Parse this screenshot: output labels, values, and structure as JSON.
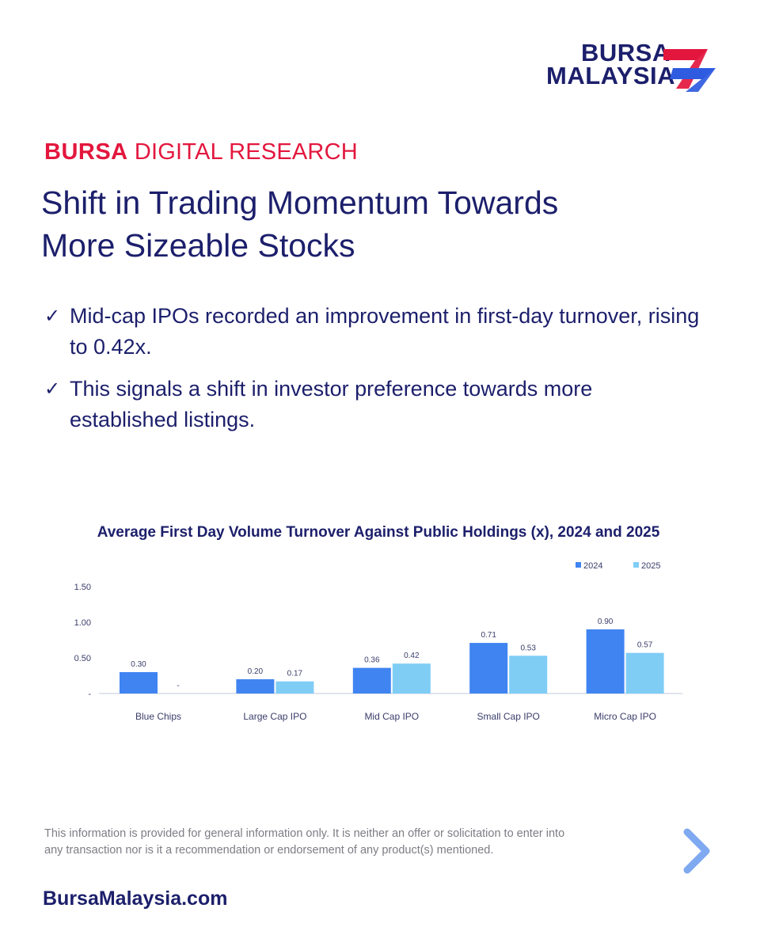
{
  "brand": {
    "logo_line1": "BURSA",
    "logo_line2": "MALAYSIA",
    "colors": {
      "navy": "#1c1f6b",
      "red": "#e3173e",
      "blue": "#2f5be0",
      "bar2024": "#3f84f1",
      "bar2025": "#7fcdf5"
    }
  },
  "header": {
    "eyebrow_bold": "BURSA",
    "eyebrow_rest": " DIGITAL RESEARCH",
    "title_line1": "Shift in Trading Momentum Towards",
    "title_line2": "More Sizeable Stocks"
  },
  "bullets": [
    {
      "check": "✓",
      "text": "Mid-cap IPOs recorded an improvement in first-day turnover, rising to 0.42x."
    },
    {
      "check": "✓",
      "text": "This signals a shift in investor preference towards more established listings."
    }
  ],
  "chart_data": {
    "type": "bar",
    "title": "Average First Day Volume Turnover Against Public Holdings (x), 2024 and 2025",
    "categories": [
      "Blue Chips",
      "Large Cap IPO",
      "Mid Cap IPO",
      "Small Cap IPO",
      "Micro Cap IPO"
    ],
    "series": [
      {
        "name": "2024",
        "values": [
          0.3,
          0.2,
          0.36,
          0.71,
          0.9
        ],
        "labels": [
          "0.30",
          "0.20",
          "0.36",
          "0.71",
          "0.90"
        ]
      },
      {
        "name": "2025",
        "values": [
          0,
          0.17,
          0.42,
          0.53,
          0.57
        ],
        "labels": [
          "-",
          "0.17",
          "0.42",
          "0.53",
          "0.57"
        ]
      }
    ],
    "yticks": [
      0,
      0.5,
      1.0,
      1.5
    ],
    "ytick_labels": [
      "-",
      "0.50",
      "1.00",
      "1.50"
    ],
    "ylim": [
      0,
      1.5
    ],
    "legend_position": "top-right",
    "grid": false
  },
  "footer": {
    "disclaimer": "This information is provided for general information only. It is neither an offer or solicitation to enter into any transaction nor is it a recommendation or endorsement of any product(s) mentioned.",
    "site": "BursaMalaysia.com",
    "next_icon": "chevron-right-icon"
  }
}
